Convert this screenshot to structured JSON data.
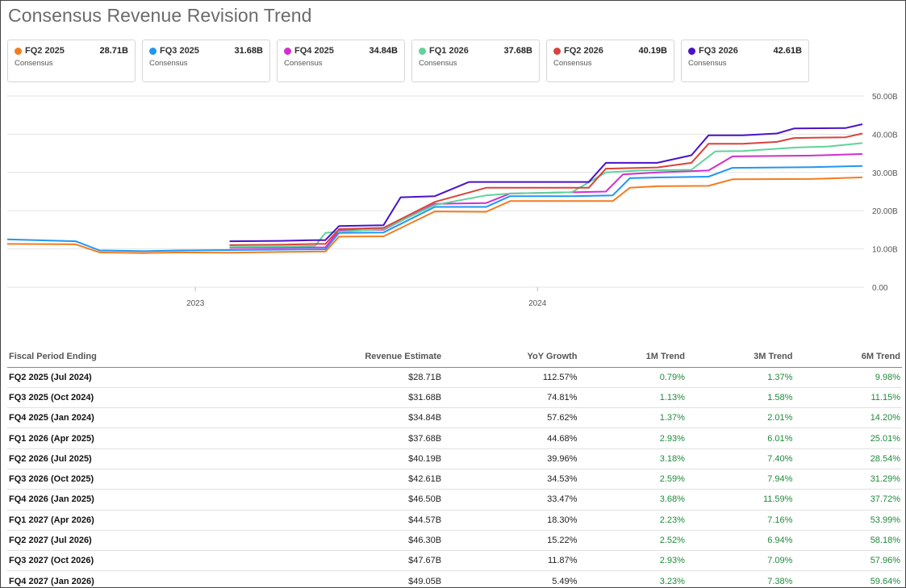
{
  "title": "Consensus Revenue Revision Trend",
  "cards": [
    {
      "label": "FQ2 2025",
      "value": "28.71B",
      "sub": "Consensus",
      "color": "#f47c20"
    },
    {
      "label": "FQ3 2025",
      "value": "31.68B",
      "sub": "Consensus",
      "color": "#2196f3"
    },
    {
      "label": "FQ4 2025",
      "value": "34.84B",
      "sub": "Consensus",
      "color": "#d12fd1"
    },
    {
      "label": "FQ1 2026",
      "value": "37.68B",
      "sub": "Consensus",
      "color": "#5fd39a"
    },
    {
      "label": "FQ2 2026",
      "value": "40.19B",
      "sub": "Consensus",
      "color": "#d9433a"
    },
    {
      "label": "FQ3 2026",
      "value": "42.61B",
      "sub": "Consensus",
      "color": "#4a12c9"
    }
  ],
  "chart_data": {
    "type": "line",
    "xlabel": "",
    "ylabel": "",
    "x_ticks": [
      "2023",
      "2024"
    ],
    "y_ticks": [
      "0.00",
      "10.00B",
      "20.00B",
      "30.00B",
      "40.00B",
      "50.00B"
    ],
    "ylim": [
      0,
      50
    ],
    "xlim": [
      2022.45,
      2024.95
    ],
    "grid": true,
    "series": [
      {
        "name": "FQ2 2025",
        "color": "#f47c20",
        "points": [
          [
            2022.45,
            11.3
          ],
          [
            2022.65,
            11.2
          ],
          [
            2022.72,
            9.1
          ],
          [
            2022.85,
            8.9
          ],
          [
            2022.95,
            9.1
          ],
          [
            2023.1,
            9.0
          ],
          [
            2023.25,
            9.2
          ],
          [
            2023.35,
            9.3
          ],
          [
            2023.38,
            9.3
          ],
          [
            2023.42,
            13.2
          ],
          [
            2023.55,
            13.3
          ],
          [
            2023.7,
            19.8
          ],
          [
            2023.85,
            19.7
          ],
          [
            2023.92,
            22.5
          ],
          [
            2024.1,
            22.5
          ],
          [
            2024.22,
            22.5
          ],
          [
            2024.27,
            26.0
          ],
          [
            2024.35,
            26.4
          ],
          [
            2024.5,
            26.5
          ],
          [
            2024.57,
            28.2
          ],
          [
            2024.8,
            28.3
          ],
          [
            2024.95,
            28.71
          ]
        ]
      },
      {
        "name": "FQ3 2025",
        "color": "#2196f3",
        "points": [
          [
            2022.45,
            12.5
          ],
          [
            2022.65,
            12.0
          ],
          [
            2022.72,
            9.6
          ],
          [
            2022.85,
            9.4
          ],
          [
            2022.95,
            9.6
          ],
          [
            2023.1,
            9.7
          ],
          [
            2023.25,
            9.8
          ],
          [
            2023.35,
            9.9
          ],
          [
            2023.38,
            9.9
          ],
          [
            2023.42,
            14.2
          ],
          [
            2023.55,
            14.3
          ],
          [
            2023.7,
            21.0
          ],
          [
            2023.85,
            21.0
          ],
          [
            2023.92,
            23.8
          ],
          [
            2024.1,
            23.8
          ],
          [
            2024.22,
            24.0
          ],
          [
            2024.27,
            28.5
          ],
          [
            2024.35,
            28.7
          ],
          [
            2024.5,
            28.9
          ],
          [
            2024.57,
            31.2
          ],
          [
            2024.8,
            31.4
          ],
          [
            2024.95,
            31.68
          ]
        ]
      },
      {
        "name": "FQ4 2025",
        "color": "#d12fd1",
        "points": [
          [
            2023.1,
            10.3
          ],
          [
            2023.25,
            10.3
          ],
          [
            2023.35,
            10.4
          ],
          [
            2023.38,
            10.4
          ],
          [
            2023.42,
            14.8
          ],
          [
            2023.55,
            15.0
          ],
          [
            2023.7,
            21.8
          ],
          [
            2023.85,
            22.0
          ],
          [
            2023.92,
            24.5
          ],
          [
            2024.1,
            24.8
          ],
          [
            2024.2,
            25.0
          ],
          [
            2024.25,
            29.5
          ],
          [
            2024.35,
            30.0
          ],
          [
            2024.5,
            30.5
          ],
          [
            2024.57,
            34.2
          ],
          [
            2024.8,
            34.4
          ],
          [
            2024.95,
            34.84
          ]
        ]
      },
      {
        "name": "FQ1 2026",
        "color": "#5fd39a",
        "points": [
          [
            2023.1,
            10.5
          ],
          [
            2023.25,
            10.6
          ],
          [
            2023.35,
            10.8
          ],
          [
            2023.38,
            14.2
          ],
          [
            2023.42,
            14.5
          ],
          [
            2023.55,
            15.2
          ],
          [
            2023.7,
            21.5
          ],
          [
            2023.85,
            24.0
          ],
          [
            2023.92,
            24.5
          ],
          [
            2024.1,
            24.8
          ],
          [
            2024.2,
            30.0
          ],
          [
            2024.3,
            30.5
          ],
          [
            2024.45,
            30.7
          ],
          [
            2024.52,
            35.5
          ],
          [
            2024.6,
            35.6
          ],
          [
            2024.75,
            36.5
          ],
          [
            2024.85,
            36.8
          ],
          [
            2024.95,
            37.68
          ]
        ]
      },
      {
        "name": "FQ2 2026",
        "color": "#d9433a",
        "points": [
          [
            2023.1,
            11.0
          ],
          [
            2023.25,
            11.1
          ],
          [
            2023.35,
            11.3
          ],
          [
            2023.38,
            11.3
          ],
          [
            2023.42,
            15.2
          ],
          [
            2023.55,
            15.5
          ],
          [
            2023.7,
            22.3
          ],
          [
            2023.85,
            26.0
          ],
          [
            2024.1,
            26.0
          ],
          [
            2024.15,
            26.0
          ],
          [
            2024.2,
            31.0
          ],
          [
            2024.35,
            31.3
          ],
          [
            2024.45,
            32.5
          ],
          [
            2024.5,
            37.5
          ],
          [
            2024.6,
            37.5
          ],
          [
            2024.7,
            38.0
          ],
          [
            2024.75,
            39.0
          ],
          [
            2024.9,
            39.2
          ],
          [
            2024.95,
            40.19
          ]
        ]
      },
      {
        "name": "FQ3 2026",
        "color": "#4a12c9",
        "points": [
          [
            2023.1,
            12.0
          ],
          [
            2023.25,
            12.1
          ],
          [
            2023.35,
            12.3
          ],
          [
            2023.38,
            12.3
          ],
          [
            2023.42,
            16.0
          ],
          [
            2023.55,
            16.2
          ],
          [
            2023.6,
            23.5
          ],
          [
            2023.7,
            23.8
          ],
          [
            2023.8,
            27.5
          ],
          [
            2024.1,
            27.5
          ],
          [
            2024.15,
            27.5
          ],
          [
            2024.2,
            32.5
          ],
          [
            2024.35,
            32.5
          ],
          [
            2024.45,
            34.5
          ],
          [
            2024.5,
            39.7
          ],
          [
            2024.6,
            39.7
          ],
          [
            2024.7,
            40.2
          ],
          [
            2024.75,
            41.5
          ],
          [
            2024.9,
            41.6
          ],
          [
            2024.95,
            42.61
          ]
        ]
      }
    ]
  },
  "table": {
    "headers": [
      "Fiscal Period Ending",
      "Revenue Estimate",
      "YoY Growth",
      "1M Trend",
      "3M Trend",
      "6M Trend"
    ],
    "rows": [
      [
        "FQ2 2025 (Jul 2024)",
        "$28.71B",
        "112.57%",
        "0.79%",
        "1.37%",
        "9.98%"
      ],
      [
        "FQ3 2025 (Oct 2024)",
        "$31.68B",
        "74.81%",
        "1.13%",
        "1.58%",
        "11.15%"
      ],
      [
        "FQ4 2025 (Jan 2024)",
        "$34.84B",
        "57.62%",
        "1.37%",
        "2.01%",
        "14.20%"
      ],
      [
        "FQ1 2026 (Apr 2025)",
        "$37.68B",
        "44.68%",
        "2.93%",
        "6.01%",
        "25.01%"
      ],
      [
        "FQ2 2026 (Jul 2025)",
        "$40.19B",
        "39.96%",
        "3.18%",
        "7.40%",
        "28.54%"
      ],
      [
        "FQ3 2026 (Oct 2025)",
        "$42.61B",
        "34.53%",
        "2.59%",
        "7.94%",
        "31.29%"
      ],
      [
        "FQ4 2026 (Jan 2025)",
        "$46.50B",
        "33.47%",
        "3.68%",
        "11.59%",
        "37.72%"
      ],
      [
        "FQ1 2027 (Apr 2026)",
        "$44.57B",
        "18.30%",
        "2.23%",
        "7.16%",
        "53.99%"
      ],
      [
        "FQ2 2027 (Jul 2026)",
        "$46.30B",
        "15.22%",
        "2.52%",
        "6.94%",
        "58.18%"
      ],
      [
        "FQ3 2027 (Oct 2026)",
        "$47.67B",
        "11.87%",
        "2.93%",
        "7.09%",
        "57.96%"
      ],
      [
        "FQ4 2027 (Jan 2026)",
        "$49.05B",
        "5.49%",
        "3.23%",
        "7.38%",
        "59.64%"
      ]
    ]
  }
}
